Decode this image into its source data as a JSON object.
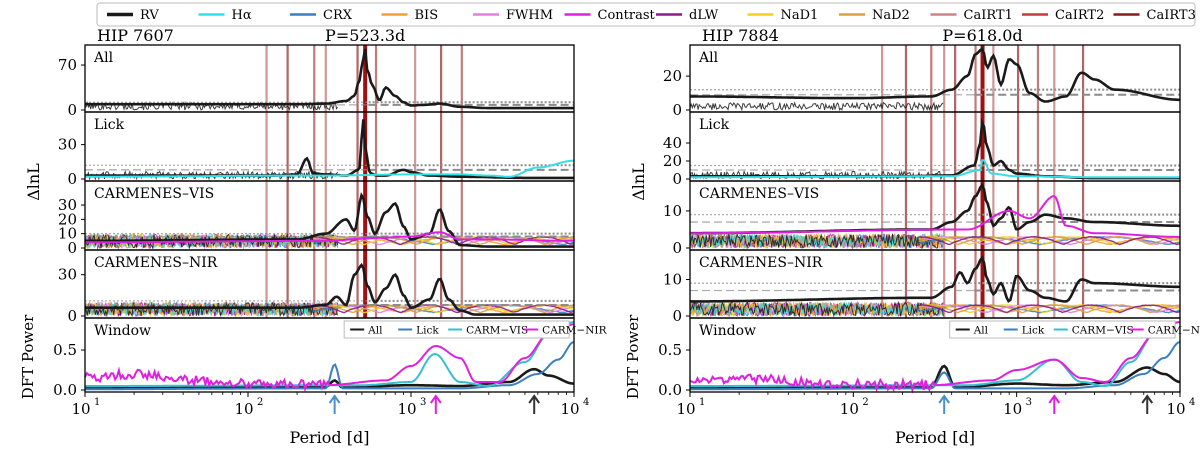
{
  "legend": {
    "entries": [
      {
        "label": "RV",
        "color": "#1a1a1a"
      },
      {
        "label": "Hα",
        "color": "#33e0e8"
      },
      {
        "label": "CRX",
        "color": "#3a7fc0"
      },
      {
        "label": "BIS",
        "color": "#f0a030"
      },
      {
        "label": "FWHM",
        "color": "#e080e0"
      },
      {
        "label": "Contrast",
        "color": "#e020e0"
      },
      {
        "label": "dLW",
        "color": "#8a1c8a"
      },
      {
        "label": "NaD1",
        "color": "#f5d020"
      },
      {
        "label": "NaD2",
        "color": "#d8a040"
      },
      {
        "label": "CaIRT1",
        "color": "#c98585"
      },
      {
        "label": "CaIRT2",
        "color": "#c83a3a"
      },
      {
        "label": "CaIRT3",
        "color": "#8a1a1a"
      }
    ]
  },
  "colors": {
    "rv": "#1a1a1a",
    "halpha": "#33e0e8",
    "crx": "#3a7fc0",
    "bis": "#f0a030",
    "fwhm": "#e080e0",
    "contrast": "#e020e0",
    "dlw": "#8a1c8a",
    "nad1": "#f5d020",
    "nad2": "#d8a040",
    "cairt1": "#c98585",
    "cairt2": "#c83a3a",
    "cairt3": "#8a1a1a",
    "period_line": "#a01010",
    "threshold": "#8c8c8c",
    "lick_window": "#3a7fc0",
    "vis_window": "#33c0d0",
    "nir_window": "#e020e0"
  },
  "chart_data": [
    {
      "type": "line",
      "star": "HIP 7607",
      "period_label": "P=523.3d",
      "period_days": 523.3,
      "xlabel": "Period [d]",
      "xscale": "log",
      "xlim": [
        10,
        10000
      ],
      "x_ticks": [
        "10",
        "10",
        "10",
        "10"
      ],
      "x_tick_exponents": [
        "1",
        "2",
        "3",
        "4"
      ],
      "activity_line_periods": [
        130,
        175,
        255,
        300,
        470,
        610,
        1060,
        1530,
        2050
      ],
      "window_arrows": [
        {
          "period": 340,
          "color": "#4a90c8"
        },
        {
          "period": 1420,
          "color": "#e020e0"
        },
        {
          "period": 5700,
          "color": "#333333"
        }
      ],
      "panels": [
        {
          "label": "All",
          "ylabel": "ΔlnL",
          "ylim": [
            0,
            95
          ],
          "yticks": [
            "0",
            "70"
          ],
          "threshold_levels": [
            8,
            12
          ],
          "series": [
            {
              "name": "RV",
              "x": [
                10,
                100,
                200,
                300,
                400,
                450,
                480,
                510,
                523,
                540,
                580,
                640,
                700,
                800,
                900,
                1000,
                1200,
                1500,
                2000,
                3000,
                10000
              ],
              "y": [
                9,
                9,
                9,
                10,
                14,
                22,
                45,
                80,
                95,
                62,
                38,
                15,
                35,
                22,
                12,
                7,
                8,
                10,
                5,
                3,
                3
              ]
            }
          ]
        },
        {
          "label": "Lick",
          "ylabel": "ΔlnL",
          "ylim": [
            0,
            55
          ],
          "yticks": [
            "0",
            "30"
          ],
          "threshold_levels": [
            8,
            12
          ],
          "series": [
            {
              "name": "RV",
              "x": [
                10,
                150,
                200,
                230,
                250,
                300,
                400,
                480,
                510,
                530,
                560,
                620,
                700,
                900,
                1000,
                1300,
                2000,
                5000,
                10000
              ],
              "y": [
                3,
                3,
                4,
                18,
                5,
                4,
                3,
                8,
                52,
                22,
                5,
                3,
                3,
                8,
                6,
                3,
                2,
                1,
                1
              ]
            },
            {
              "name": "Hα",
              "x": [
                10,
                300,
                1000,
                2000,
                3000,
                4000,
                6000,
                10000
              ],
              "y": [
                2,
                3,
                4,
                4,
                3,
                2,
                10,
                16
              ]
            }
          ]
        },
        {
          "label": "CARMENES–VIS",
          "ylabel": "ΔlnL",
          "ylim": [
            0,
            44
          ],
          "yticks": [
            "0",
            "10",
            "20",
            "30"
          ],
          "threshold_levels": [
            8,
            10
          ],
          "series": [
            {
              "name": "RV",
              "x": [
                10,
                200,
                300,
                400,
                450,
                500,
                540,
                600,
                700,
                800,
                900,
                1000,
                1300,
                1500,
                1700,
                2000,
                3000,
                10000
              ],
              "y": [
                5,
                6,
                10,
                20,
                12,
                37,
                22,
                10,
                25,
                31,
                15,
                6,
                10,
                27,
                12,
                2,
                1,
                1
              ]
            },
            {
              "name": "Contrast",
              "x": [
                10,
                300,
                600,
                1000,
                1500,
                2000,
                3000,
                10000
              ],
              "y": [
                4,
                5,
                7,
                8,
                11,
                6,
                6,
                5
              ]
            }
          ]
        },
        {
          "label": "CARMENES–NIR",
          "ylabel": "ΔlnL",
          "ylim": [
            0,
            45
          ],
          "yticks": [
            "0",
            "30"
          ],
          "threshold_levels": [
            8,
            11
          ],
          "series": [
            {
              "name": "RV",
              "x": [
                10,
                200,
                300,
                350,
                400,
                450,
                500,
                540,
                600,
                700,
                800,
                900,
                1000,
                1300,
                1500,
                1700,
                2000,
                2500,
                10000
              ],
              "y": [
                6,
                6,
                8,
                14,
                8,
                30,
                37,
                22,
                10,
                20,
                30,
                15,
                6,
                12,
                27,
                12,
                4,
                1,
                1
              ]
            }
          ]
        },
        {
          "label": "Window",
          "ylabel": "DFT Power",
          "ylim": [
            0,
            0.85
          ],
          "yticks": [
            "0.0",
            "0.5"
          ],
          "legend": [
            "All",
            "Lick",
            "CARM−VIS",
            "CARM−NIR"
          ],
          "series": [
            {
              "name": "All",
              "x": [
                10,
                300,
                340,
                380,
                1000,
                2000,
                4000,
                5700,
                7000,
                10000
              ],
              "y": [
                0.02,
                0.04,
                0.12,
                0.03,
                0.06,
                0.05,
                0.1,
                0.26,
                0.18,
                0.08
              ]
            },
            {
              "name": "Lick",
              "x": [
                10,
                300,
                340,
                380,
                2000,
                4000,
                6000,
                8000,
                10000
              ],
              "y": [
                0.01,
                0.02,
                0.32,
                0.02,
                0.02,
                0.06,
                0.2,
                0.38,
                0.6
              ]
            },
            {
              "name": "CARM−VIS",
              "x": [
                10,
                500,
                1000,
                1400,
                2000,
                3000,
                5000,
                7000,
                10000
              ],
              "y": [
                0.05,
                0.06,
                0.1,
                0.45,
                0.1,
                0.05,
                0.35,
                0.7,
                0.85
              ]
            },
            {
              "name": "CARM−NIR",
              "x": [
                10,
                20,
                50,
                100,
                300,
                700,
                1000,
                1420,
                2000,
                2500,
                3500,
                5000,
                7000,
                10000
              ],
              "y": [
                0.15,
                0.2,
                0.12,
                0.08,
                0.06,
                0.12,
                0.3,
                0.55,
                0.4,
                0.1,
                0.1,
                0.4,
                0.7,
                0.82
              ]
            }
          ]
        }
      ]
    },
    {
      "type": "line",
      "star": "HIP 7884",
      "period_label": "P=618.0d",
      "period_days": 618.0,
      "xlabel": "Period [d]",
      "xscale": "log",
      "xlim": [
        10,
        10000
      ],
      "x_ticks": [
        "10",
        "10",
        "10",
        "10"
      ],
      "x_tick_exponents": [
        "1",
        "2",
        "3",
        "4"
      ],
      "activity_line_periods": [
        150,
        210,
        300,
        360,
        420,
        560,
        720,
        1020,
        1350,
        1700,
        2550
      ],
      "window_arrows": [
        {
          "period": 360,
          "color": "#4a90c8"
        },
        {
          "period": 1700,
          "color": "#e020e0"
        },
        {
          "period": 6300,
          "color": "#333333"
        }
      ],
      "panels": [
        {
          "label": "All",
          "ylabel": "ΔlnL",
          "ylim": [
            0,
            36
          ],
          "yticks": [
            "0",
            "20"
          ],
          "threshold_levels": [
            9,
            12
          ],
          "series": [
            {
              "name": "RV",
              "x": [
                10,
                100,
                300,
                400,
                500,
                560,
                618,
                660,
                720,
                800,
                900,
                1000,
                1200,
                1500,
                2000,
                2500,
                3000,
                4000,
                10000
              ],
              "y": [
                8,
                7,
                8,
                12,
                20,
                33,
                36,
                25,
                32,
                15,
                30,
                27,
                10,
                5,
                8,
                22,
                18,
                12,
                6
              ]
            }
          ]
        },
        {
          "label": "Lick",
          "ylabel": "ΔlnL",
          "ylim": [
            0,
            70
          ],
          "yticks": [
            "0",
            "20",
            "40"
          ],
          "threshold_levels": [
            10,
            15
          ],
          "series": [
            {
              "name": "RV",
              "x": [
                10,
                200,
                400,
                550,
                600,
                618,
                660,
                720,
                800,
                900,
                1000,
                1500,
                3000,
                10000
              ],
              "y": [
                3,
                3,
                4,
                15,
                40,
                65,
                35,
                15,
                20,
                10,
                6,
                3,
                1,
                1
              ]
            },
            {
              "name": "Hα",
              "x": [
                10,
                400,
                600,
                618,
                700,
                1000,
                3000,
                10000
              ],
              "y": [
                2,
                3,
                10,
                22,
                6,
                3,
                2,
                2
              ]
            }
          ]
        },
        {
          "label": "CARMENES–VIS",
          "ylabel": "ΔlnL",
          "ylim": [
            0,
            17
          ],
          "yticks": [
            "0",
            "10"
          ],
          "threshold_levels": [
            7,
            9
          ],
          "series": [
            {
              "name": "RV",
              "x": [
                10,
                300,
                400,
                500,
                560,
                618,
                660,
                720,
                800,
                900,
                1000,
                1200,
                1500,
                2000,
                3000,
                10000
              ],
              "y": [
                4,
                5,
                7,
                10,
                14,
                17,
                12,
                6,
                8,
                11,
                5,
                7,
                9,
                8,
                7,
                6
              ]
            },
            {
              "name": "Contrast",
              "x": [
                10,
                500,
                900,
                1200,
                1700,
                2000,
                3000,
                10000
              ],
              "y": [
                4,
                5,
                10,
                8,
                14,
                6,
                4,
                3
              ]
            }
          ]
        },
        {
          "label": "CARMENES–NIR",
          "ylabel": "ΔlnL",
          "ylim": [
            0,
            17
          ],
          "yticks": [
            "0",
            "10"
          ],
          "threshold_levels": [
            7,
            9
          ],
          "series": [
            {
              "name": "RV",
              "x": [
                10,
                300,
                400,
                450,
                500,
                560,
                618,
                660,
                720,
                800,
                900,
                1000,
                1200,
                1500,
                2000,
                2500,
                3000,
                10000
              ],
              "y": [
                4,
                5,
                8,
                12,
                9,
                13,
                16,
                10,
                6,
                9,
                4,
                11,
                7,
                5,
                4,
                10,
                9,
                8
              ]
            }
          ]
        },
        {
          "label": "Window",
          "ylabel": "DFT Power",
          "ylim": [
            0,
            0.85
          ],
          "yticks": [
            "0.0",
            "0.5"
          ],
          "legend": [
            "All",
            "Lick",
            "CARM−VIS",
            "CARM−NIR"
          ],
          "series": [
            {
              "name": "All",
              "x": [
                10,
                300,
                360,
                420,
                1000,
                2000,
                4000,
                6300,
                8000,
                10000
              ],
              "y": [
                0.02,
                0.04,
                0.3,
                0.03,
                0.08,
                0.06,
                0.1,
                0.28,
                0.2,
                0.1
              ]
            },
            {
              "name": "Lick",
              "x": [
                10,
                300,
                360,
                420,
                2000,
                4000,
                6000,
                8000,
                10000
              ],
              "y": [
                0.01,
                0.02,
                0.22,
                0.02,
                0.02,
                0.06,
                0.2,
                0.4,
                0.6
              ]
            },
            {
              "name": "CARM−VIS",
              "x": [
                10,
                500,
                1000,
                1700,
                2500,
                3500,
                5000,
                7000,
                10000
              ],
              "y": [
                0.05,
                0.06,
                0.12,
                0.38,
                0.1,
                0.05,
                0.35,
                0.7,
                0.85
              ]
            },
            {
              "name": "CARM−NIR",
              "x": [
                10,
                20,
                50,
                100,
                300,
                700,
                1000,
                1700,
                2500,
                3500,
                5000,
                7000,
                10000
              ],
              "y": [
                0.1,
                0.15,
                0.1,
                0.07,
                0.06,
                0.12,
                0.25,
                0.38,
                0.15,
                0.1,
                0.4,
                0.7,
                0.85
              ]
            }
          ]
        }
      ]
    }
  ]
}
